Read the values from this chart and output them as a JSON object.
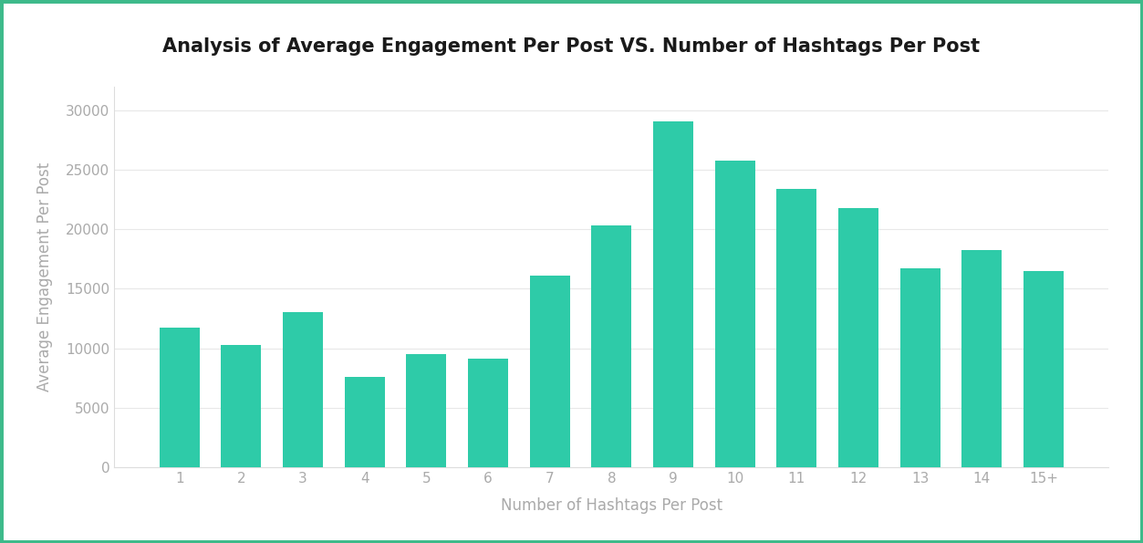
{
  "title": "Analysis of Average Engagement Per Post VS. Number of Hashtags Per Post",
  "xlabel": "Number of Hashtags Per Post",
  "ylabel": "Average Engagement Per Post",
  "categories": [
    "1",
    "2",
    "3",
    "4",
    "5",
    "6",
    "7",
    "8",
    "9",
    "10",
    "11",
    "12",
    "13",
    "14",
    "15+"
  ],
  "values": [
    11700,
    10300,
    13000,
    7600,
    9500,
    9100,
    16100,
    20300,
    29100,
    25800,
    23400,
    21800,
    16700,
    18300,
    16500
  ],
  "bar_color": "#2ecba8",
  "background_color": "#ffffff",
  "plot_bg_color": "#ffffff",
  "title_bg_color": "#eef0f5",
  "ylim": [
    0,
    32000
  ],
  "yticks": [
    0,
    5000,
    10000,
    15000,
    20000,
    25000,
    30000
  ],
  "border_color": "#3dba8a",
  "title_fontsize": 15,
  "axis_label_fontsize": 12,
  "tick_fontsize": 11,
  "tick_color": "#aaaaaa",
  "label_color": "#aaaaaa"
}
